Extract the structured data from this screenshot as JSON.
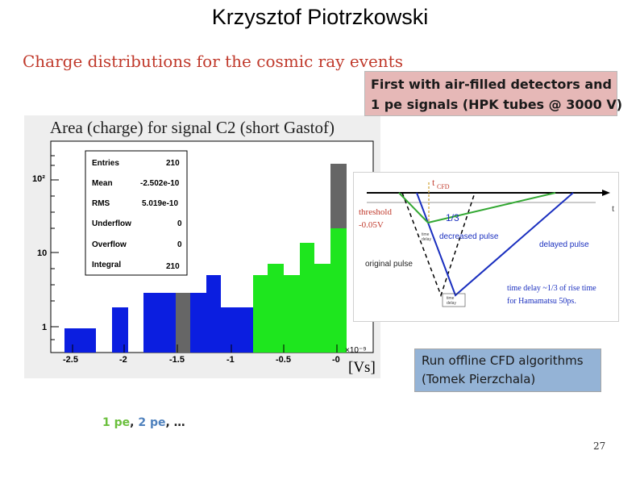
{
  "slide": {
    "title": "Krzysztof Piotrzkowski",
    "subtitle": "Charge distributions for the cosmic ray events",
    "page_number": "27"
  },
  "pink_box": {
    "line1": "First with air-filled detectors and",
    "line2": "1 pe signals (HPK tubes @ 3000 V)"
  },
  "blue_box": {
    "line1": "Run offline CFD algorithms",
    "line2": "(Tomek Pierzchala)"
  },
  "pe_line": {
    "pe1": "1 pe",
    "sep1": ", ",
    "pe2": "2 pe",
    "tail": ", …"
  },
  "histogram": {
    "title": "Area (charge) for signal C2 (short Gastof)",
    "stats": [
      {
        "label": "Entries",
        "value": "210"
      },
      {
        "label": "Mean",
        "value": "-2.502e-10"
      },
      {
        "label": "RMS",
        "value": "5.019e-10"
      },
      {
        "label": "Underflow",
        "value": "0"
      },
      {
        "label": "Overflow",
        "value": "0"
      },
      {
        "label": "Integral",
        "value": "210"
      }
    ],
    "y_ticks": [
      "10²",
      "10",
      "1"
    ],
    "x_ticks": [
      "-2.5",
      "-2",
      "-1.5",
      "-1",
      "-0.5",
      "-0"
    ],
    "x_exponent": "×10⁻⁹",
    "x_unit": "[Vs]",
    "colors": {
      "blue": "#0b1ee0",
      "green": "#1ee61e",
      "grey": "#666666"
    }
  },
  "cfd_diagram": {
    "t_cfd_label": "t",
    "t_cfd_sub": "CFD",
    "t_axis_label": "t",
    "threshold_label": "threshold",
    "threshold_value": "-0.05V",
    "fraction_label": "1/3",
    "decreased_label": "decreased pulse",
    "delayed_label": "delayed pulse",
    "original_label": "original pulse",
    "time_delay_label": "time delay ~1/3 of rise time",
    "hamamatsu_label": "for Hamamatsu 50ps.",
    "rise_label": "time",
    "rise_label2": "delay",
    "delay_small": "time",
    "delay_small2": "delay"
  }
}
